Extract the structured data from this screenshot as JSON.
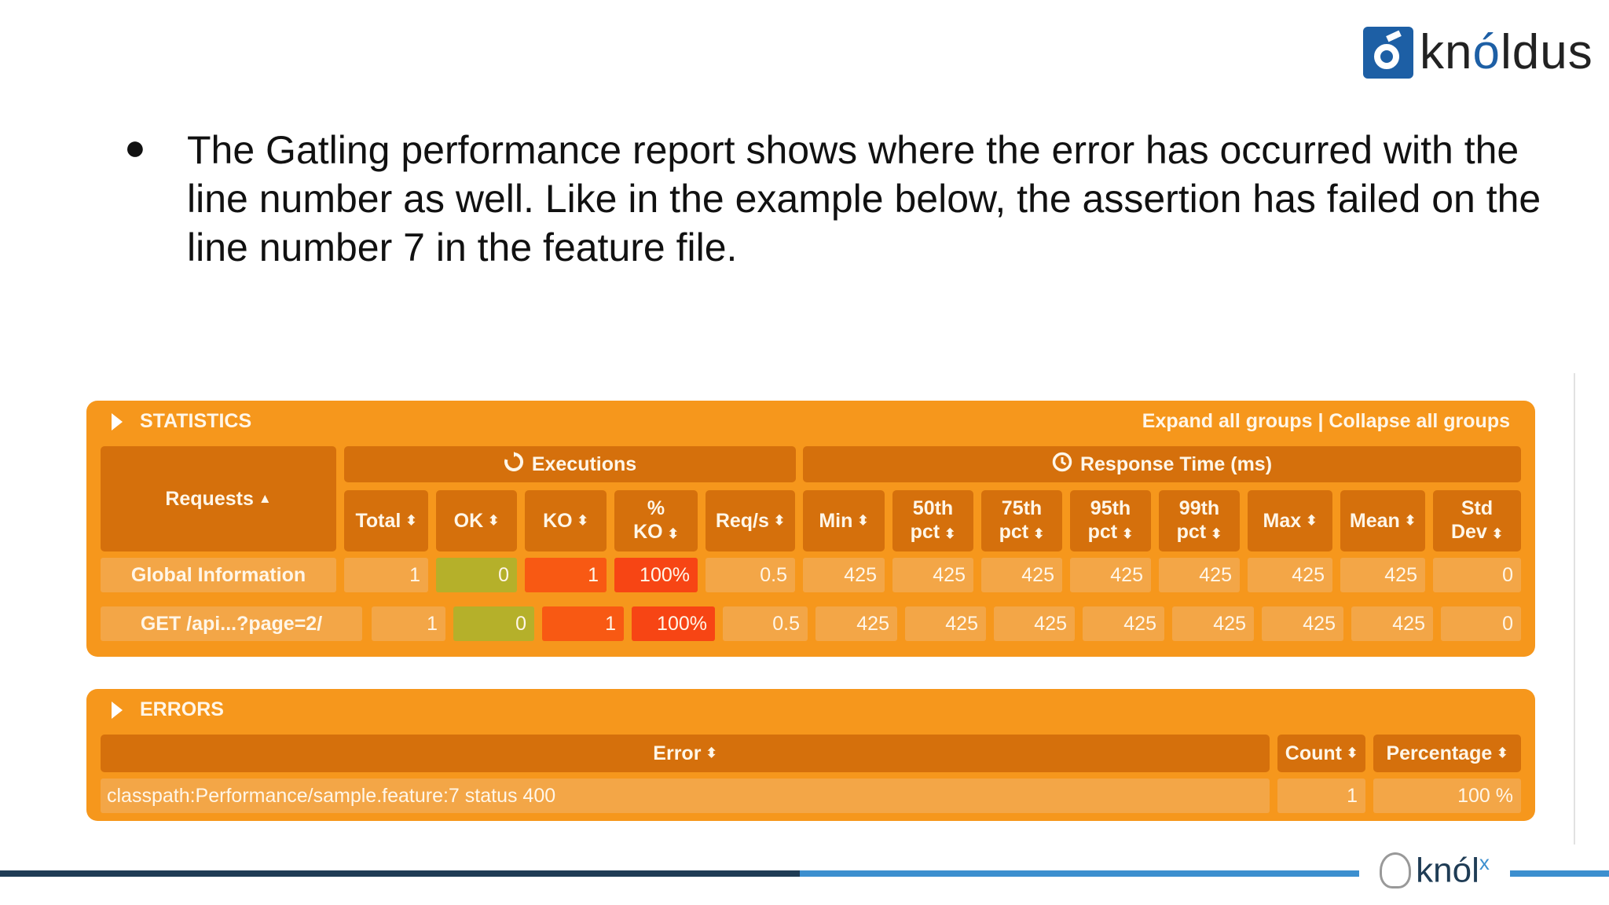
{
  "logo": {
    "text_pre": "kn",
    "text_accent": "ó",
    "text_post": "ldus"
  },
  "slide": {
    "bullet": "●",
    "text": "The Gatling performance report shows where the error has occurred with the line number as well. Like in the example below, the assertion has failed on the line number 7 in the feature file."
  },
  "statistics": {
    "title": "STATISTICS",
    "expand_link": "Expand all groups",
    "separator": "|",
    "collapse_link": "Collapse all groups",
    "requests_header": "Requests",
    "executions_header": "Executions",
    "response_time_header": "Response Time (ms)",
    "columns": {
      "total": "Total",
      "ok": "OK",
      "ko": "KO",
      "pct_ko_1": "%",
      "pct_ko_2": "KO",
      "reqs": "Req/s",
      "min": "Min",
      "p50_1": "50th",
      "p75_1": "75th",
      "p95_1": "95th",
      "p99_1": "99th",
      "pct": "pct",
      "max": "Max",
      "mean": "Mean",
      "std_1": "Std",
      "std_2": "Dev"
    },
    "rows": [
      {
        "name": "Global Information",
        "total": "1",
        "ok": "0",
        "ko": "1",
        "pct_ko": "100%",
        "reqs": "0.5",
        "min": "425",
        "p50": "425",
        "p75": "425",
        "p95": "425",
        "p99": "425",
        "max": "425",
        "mean": "425",
        "std": "0"
      },
      {
        "name": "GET /api...?page=2/",
        "total": "1",
        "ok": "0",
        "ko": "1",
        "pct_ko": "100%",
        "reqs": "0.5",
        "min": "425",
        "p50": "425",
        "p75": "425",
        "p95": "425",
        "p99": "425",
        "max": "425",
        "mean": "425",
        "std": "0"
      }
    ]
  },
  "errors": {
    "title": "ERRORS",
    "columns": {
      "error": "Error",
      "count": "Count",
      "percentage": "Percentage"
    },
    "rows": [
      {
        "error": "classpath:Performance/sample.feature:7 status 400",
        "count": "1",
        "percentage": "100 %"
      }
    ]
  },
  "footer": {
    "logo_text": "knól",
    "logo_sup": "x"
  },
  "colors": {
    "panel": "#f6971c",
    "header": "#d5700c",
    "cell": "#f3a647",
    "ok": "#b5b02a",
    "ko": "#f85913",
    "pct_ko": "#f74514",
    "brand_blue": "#1d5fa5",
    "bar_dark": "#1f3c55",
    "bar_light": "#3c8fcf"
  },
  "icons": {
    "collapse": "triangle-right-icon",
    "sort": "sort-icon",
    "executions": "refresh-icon",
    "response": "clock-icon"
  }
}
